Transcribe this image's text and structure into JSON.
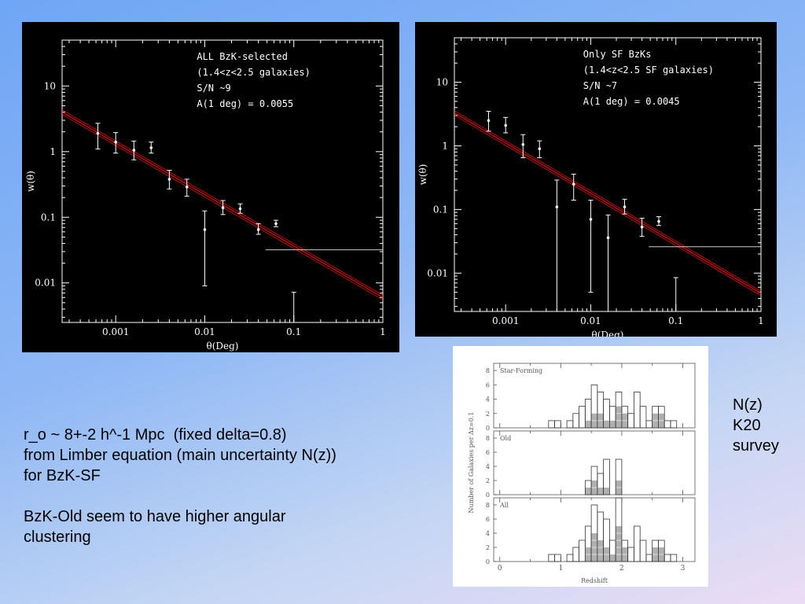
{
  "chart_data": [
    {
      "type": "scatter",
      "title": "",
      "xlabel": "θ(Deg)",
      "ylabel": "w(θ)",
      "xscale": "log",
      "yscale": "log",
      "xlim": [
        0.00025,
        1
      ],
      "ylim": [
        0.0025,
        50
      ],
      "x_ticks": [
        "0.001",
        "0.01",
        "0.1",
        "1"
      ],
      "y_ticks": [
        "0.01",
        "0.1",
        "1",
        "10"
      ],
      "annotation": [
        "ALL BzK-selected",
        "(1.4<z<2.5 galaxies)",
        "S/N ~9",
        "A(1 deg) = 0.0055"
      ],
      "points": [
        {
          "x": 0.00063,
          "y": 1.9,
          "lo": 1.1,
          "hi": 2.7
        },
        {
          "x": 0.001,
          "y": 1.4,
          "lo": 0.95,
          "hi": 1.95
        },
        {
          "x": 0.0016,
          "y": 1.05,
          "lo": 0.75,
          "hi": 1.45
        },
        {
          "x": 0.0025,
          "y": 1.15,
          "lo": 0.95,
          "hi": 1.4
        },
        {
          "x": 0.004,
          "y": 0.38,
          "lo": 0.27,
          "hi": 0.52
        },
        {
          "x": 0.0063,
          "y": 0.29,
          "lo": 0.21,
          "hi": 0.38
        },
        {
          "x": 0.01,
          "y": 0.065,
          "lo": 0.009,
          "hi": 0.125
        },
        {
          "x": 0.016,
          "y": 0.14,
          "lo": 0.11,
          "hi": 0.18
        },
        {
          "x": 0.025,
          "y": 0.135,
          "lo": 0.115,
          "hi": 0.16
        },
        {
          "x": 0.04,
          "y": 0.065,
          "lo": 0.055,
          "hi": 0.08
        },
        {
          "x": 0.063,
          "y": 0.08,
          "lo": 0.072,
          "hi": 0.09
        },
        {
          "x": 0.1,
          "y": null,
          "lo": 0.0025,
          "hi": 0.0072
        }
      ],
      "fit": {
        "x": [
          0.00025,
          1
        ],
        "y": [
          4.0,
          0.006
        ],
        "band": [
          0.92,
          1.08
        ]
      },
      "hline": {
        "x": [
          0.048,
          1
        ],
        "y": 0.032
      }
    },
    {
      "type": "scatter",
      "title": "",
      "xlabel": "θ(Deg)",
      "ylabel": "w(θ)",
      "xscale": "log",
      "yscale": "log",
      "xlim": [
        0.00025,
        1
      ],
      "ylim": [
        0.0025,
        50
      ],
      "x_ticks": [
        "0.001",
        "0.01",
        "0.1",
        "1"
      ],
      "y_ticks": [
        "0.01",
        "0.1",
        "1",
        "10"
      ],
      "annotation": [
        "Only SF BzKs",
        "(1.4<z<2.5 SF galaxies)",
        "S/N ~7",
        "A(1 deg) = 0.0045"
      ],
      "points": [
        {
          "x": 0.00063,
          "y": 2.5,
          "lo": 1.7,
          "hi": 3.5
        },
        {
          "x": 0.001,
          "y": 2.1,
          "lo": 1.6,
          "hi": 2.8
        },
        {
          "x": 0.0016,
          "y": 1.05,
          "lo": 0.65,
          "hi": 1.5
        },
        {
          "x": 0.0025,
          "y": 0.9,
          "lo": 0.65,
          "hi": 1.2
        },
        {
          "x": 0.004,
          "y": 0.11,
          "lo": 0.0025,
          "hi": 0.29
        },
        {
          "x": 0.0063,
          "y": 0.25,
          "lo": 0.14,
          "hi": 0.36
        },
        {
          "x": 0.01,
          "y": 0.07,
          "lo": 0.005,
          "hi": 0.14
        },
        {
          "x": 0.016,
          "y": 0.036,
          "lo": 0.0025,
          "hi": 0.082
        },
        {
          "x": 0.025,
          "y": 0.11,
          "lo": 0.085,
          "hi": 0.145
        },
        {
          "x": 0.04,
          "y": 0.053,
          "lo": 0.038,
          "hi": 0.073
        },
        {
          "x": 0.063,
          "y": 0.065,
          "lo": 0.056,
          "hi": 0.077
        },
        {
          "x": 0.1,
          "y": null,
          "lo": 0.0025,
          "hi": 0.0085
        }
      ],
      "fit": {
        "x": [
          0.00025,
          1
        ],
        "y": [
          3.3,
          0.0048
        ],
        "band": [
          0.92,
          1.08
        ]
      },
      "hline": {
        "x": [
          0.048,
          1
        ],
        "y": 0.026
      }
    },
    {
      "type": "bar",
      "title": "",
      "xlabel": "Redshift",
      "ylabel": "Number of Galaxies per Δz=0.1",
      "xlim": [
        -0.1,
        3.2
      ],
      "ylim": [
        0,
        9
      ],
      "x_ticks": [
        "0",
        "1",
        "2",
        "3"
      ],
      "y_ticks": [
        "0",
        "2",
        "4",
        "6",
        "8"
      ],
      "bin_width": 0.1,
      "panels": [
        {
          "label": "Star-Forming",
          "bins": [
            0.8,
            0.9,
            1.0,
            1.1,
            1.2,
            1.3,
            1.4,
            1.5,
            1.6,
            1.7,
            1.8,
            1.9,
            2.0,
            2.1,
            2.2,
            2.3,
            2.4,
            2.5,
            2.6,
            2.7,
            2.8,
            2.9
          ],
          "total": [
            1,
            1,
            0,
            1,
            2,
            3,
            4,
            6,
            5,
            4,
            3,
            5,
            3,
            2,
            5,
            3,
            1,
            3,
            3,
            1,
            1,
            0
          ],
          "shaded": [
            0,
            0,
            0,
            0,
            0,
            0,
            1,
            2,
            2,
            1,
            1,
            3,
            2,
            0,
            0,
            0,
            0,
            2,
            2,
            0,
            0,
            0
          ]
        },
        {
          "label": "Old",
          "bins": [
            1.4,
            1.5,
            1.6,
            1.7,
            1.8,
            1.9,
            2.0
          ],
          "total": [
            2,
            4,
            3,
            5,
            0,
            5,
            0
          ],
          "shaded": [
            1,
            2,
            1,
            1,
            0,
            2,
            0
          ]
        },
        {
          "label": "All",
          "bins": [
            0.8,
            0.9,
            1.0,
            1.1,
            1.2,
            1.3,
            1.4,
            1.5,
            1.6,
            1.7,
            1.8,
            1.9,
            2.0,
            2.1,
            2.2,
            2.3,
            2.4,
            2.5,
            2.6,
            2.7,
            2.8,
            2.9
          ],
          "total": [
            1,
            1,
            0,
            1,
            2,
            3,
            5,
            8,
            7,
            6,
            3,
            9,
            3,
            2,
            5,
            3,
            1,
            3,
            3,
            1,
            1,
            0
          ],
          "shaded": [
            0,
            0,
            0,
            0,
            0,
            0,
            2,
            4,
            3,
            2,
            1,
            5,
            2,
            0,
            0,
            0,
            0,
            2,
            2,
            0,
            0,
            0
          ]
        }
      ]
    }
  ],
  "notes": {
    "line1": "r_o ~ 8+-2 h^-1 Mpc  (fixed delta=0.8)",
    "line2": "from Limber equation (main uncertainty N(z))",
    "line3": "for BzK-SF",
    "line4": "BzK-Old seem to have higher angular",
    "line5": "clustering"
  },
  "nz_label": {
    "line1": "N(z)",
    "line2": "K20",
    "line3": "survey"
  },
  "colors": {
    "plot_background": "#000000",
    "axis": "#ffffff",
    "fit_line": "#e01010",
    "hist_shade": "#b0b0b0"
  }
}
